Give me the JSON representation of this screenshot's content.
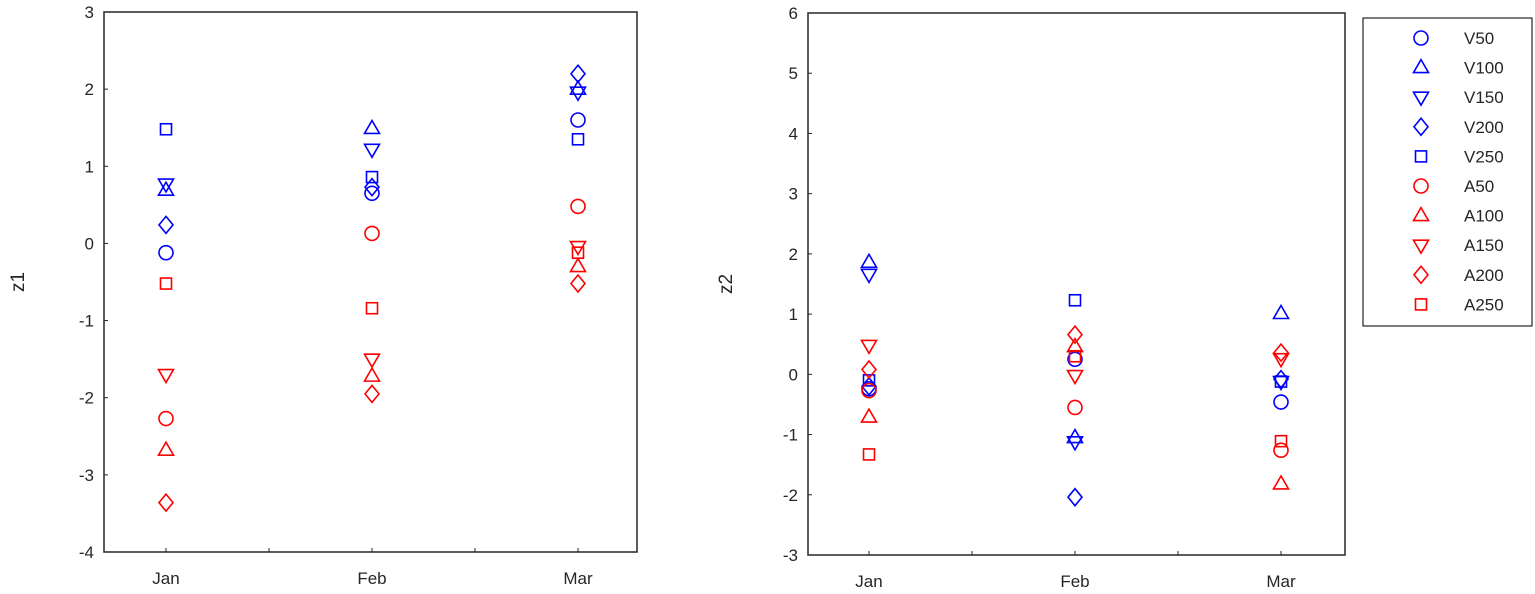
{
  "colors": {
    "V": "#0000ff",
    "A": "#ff0000",
    "axis": "#262626"
  },
  "chart_data": [
    {
      "type": "scatter",
      "title": "",
      "xlabel": "",
      "ylabel": "z1",
      "categories": [
        "Jan",
        "Feb",
        "Mar"
      ],
      "ylim": [
        -4,
        3
      ],
      "yticks": [
        -4,
        -3,
        -2,
        -1,
        0,
        1,
        2,
        3
      ],
      "grid": false,
      "series": [
        {
          "name": "V50",
          "marker": "circle",
          "color": "#0000ff",
          "values": [
            -0.12,
            0.65,
            1.6
          ]
        },
        {
          "name": "V100",
          "marker": "triangle-up",
          "color": "#0000ff",
          "values": [
            0.69,
            1.49,
            2.0
          ]
        },
        {
          "name": "V150",
          "marker": "triangle-down",
          "color": "#0000ff",
          "values": [
            0.77,
            1.22,
            1.96
          ]
        },
        {
          "name": "V200",
          "marker": "diamond",
          "color": "#0000ff",
          "values": [
            0.24,
            0.73,
            2.2
          ]
        },
        {
          "name": "V250",
          "marker": "square",
          "color": "#0000ff",
          "values": [
            1.48,
            0.86,
            1.35
          ]
        },
        {
          "name": "A50",
          "marker": "circle",
          "color": "#ff0000",
          "values": [
            -2.27,
            0.13,
            0.48
          ]
        },
        {
          "name": "A100",
          "marker": "triangle-up",
          "color": "#ff0000",
          "values": [
            -2.68,
            -1.72,
            -0.3
          ]
        },
        {
          "name": "A150",
          "marker": "triangle-down",
          "color": "#ff0000",
          "values": [
            -1.7,
            -1.5,
            -0.04
          ]
        },
        {
          "name": "A200",
          "marker": "diamond",
          "color": "#ff0000",
          "values": [
            -3.36,
            -1.95,
            -0.52
          ]
        },
        {
          "name": "A250",
          "marker": "square",
          "color": "#ff0000",
          "values": [
            -0.52,
            -0.84,
            -0.12
          ]
        }
      ]
    },
    {
      "type": "scatter",
      "title": "",
      "xlabel": "",
      "ylabel": "z2",
      "categories": [
        "Jan",
        "Feb",
        "Mar"
      ],
      "ylim": [
        -3,
        6
      ],
      "yticks": [
        -3,
        -2,
        -1,
        0,
        1,
        2,
        3,
        4,
        5,
        6
      ],
      "grid": false,
      "legend_position": "outside-right",
      "series": [
        {
          "name": "V50",
          "marker": "circle",
          "color": "#0000ff",
          "values": [
            -0.24,
            0.25,
            -0.46
          ]
        },
        {
          "name": "V100",
          "marker": "triangle-up",
          "color": "#0000ff",
          "values": [
            1.86,
            -1.05,
            1.01
          ]
        },
        {
          "name": "V150",
          "marker": "triangle-down",
          "color": "#0000ff",
          "values": [
            1.66,
            -1.12,
            -0.12
          ]
        },
        {
          "name": "V200",
          "marker": "diamond",
          "color": "#0000ff",
          "values": [
            -0.2,
            -2.04,
            -0.08
          ]
        },
        {
          "name": "V250",
          "marker": "square",
          "color": "#0000ff",
          "values": [
            -0.1,
            1.23,
            -0.12
          ]
        },
        {
          "name": "A50",
          "marker": "circle",
          "color": "#ff0000",
          "values": [
            -0.27,
            -0.55,
            -1.26
          ]
        },
        {
          "name": "A100",
          "marker": "triangle-up",
          "color": "#ff0000",
          "values": [
            -0.71,
            0.46,
            -1.82
          ]
        },
        {
          "name": "A150",
          "marker": "triangle-down",
          "color": "#ff0000",
          "values": [
            0.48,
            -0.02,
            0.26
          ]
        },
        {
          "name": "A200",
          "marker": "diamond",
          "color": "#ff0000",
          "values": [
            0.08,
            0.66,
            0.36
          ]
        },
        {
          "name": "A250",
          "marker": "square",
          "color": "#ff0000",
          "values": [
            -1.33,
            0.3,
            -1.11
          ]
        }
      ]
    }
  ],
  "legend": {
    "items": [
      {
        "label": "V50",
        "marker": "circle",
        "color": "#0000ff"
      },
      {
        "label": "V100",
        "marker": "triangle-up",
        "color": "#0000ff"
      },
      {
        "label": "V150",
        "marker": "triangle-down",
        "color": "#0000ff"
      },
      {
        "label": "V200",
        "marker": "diamond",
        "color": "#0000ff"
      },
      {
        "label": "V250",
        "marker": "square",
        "color": "#0000ff"
      },
      {
        "label": "A50",
        "marker": "circle",
        "color": "#ff0000"
      },
      {
        "label": "A100",
        "marker": "triangle-up",
        "color": "#ff0000"
      },
      {
        "label": "A150",
        "marker": "triangle-down",
        "color": "#ff0000"
      },
      {
        "label": "A200",
        "marker": "diamond",
        "color": "#ff0000"
      },
      {
        "label": "A250",
        "marker": "square",
        "color": "#ff0000"
      }
    ]
  }
}
